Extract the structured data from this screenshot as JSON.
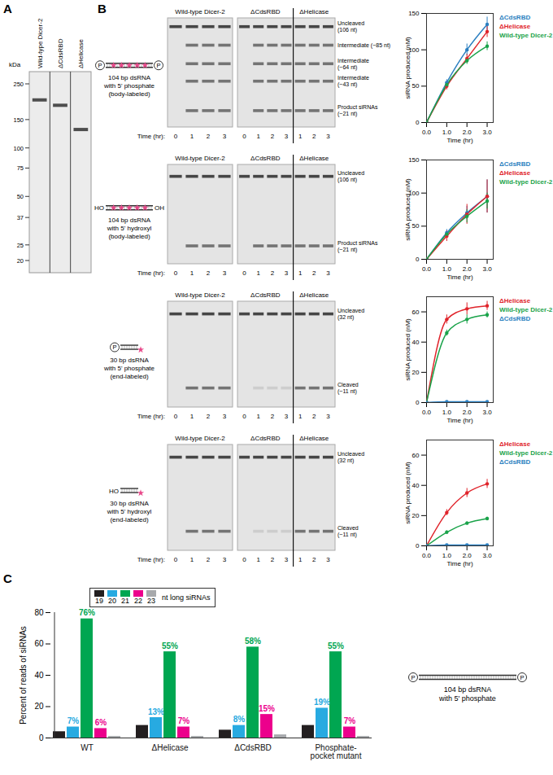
{
  "chart_data": [
    {
      "type": "line",
      "x": [
        0,
        1,
        2,
        3
      ],
      "xlim": [
        0,
        3.3
      ],
      "xticks": [
        0,
        1,
        2,
        3
      ],
      "ylim": [
        0,
        150
      ],
      "yticks": [
        0,
        50,
        100,
        150
      ],
      "x_label": "Time (hr)",
      "y_label": "siRNA produced (nM)",
      "legend": "right",
      "marker": "circle",
      "series": [
        {
          "name": "ΔCdsRBD",
          "color": "#2b7fc0",
          "values": [
            0,
            55,
            100,
            135
          ],
          "errors": [
            0,
            4,
            8,
            10
          ]
        },
        {
          "name": "ΔHelicase",
          "color": "#e0242b",
          "values": [
            0,
            50,
            88,
            125
          ],
          "errors": [
            0,
            5,
            6,
            8
          ]
        },
        {
          "name": "Wild-type Dicer-2",
          "color": "#1aa34a",
          "values": [
            0,
            52,
            85,
            105
          ],
          "errors": [
            0,
            3,
            5,
            6
          ]
        }
      ]
    },
    {
      "type": "line",
      "x": [
        0,
        1,
        2,
        3
      ],
      "xlim": [
        0,
        3.3
      ],
      "xticks": [
        0,
        1,
        2,
        3
      ],
      "ylim": [
        0,
        150
      ],
      "yticks": [
        0,
        50,
        100,
        150
      ],
      "x_label": "Time (hr)",
      "y_label": "siRNA produced (nM)",
      "legend": "right",
      "marker": "circle",
      "series": [
        {
          "name": "ΔCdsRBD",
          "color": "#2b7fc0",
          "values": [
            0,
            40,
            70,
            95
          ],
          "errors": [
            0,
            5,
            10,
            25
          ]
        },
        {
          "name": "ΔHelicase",
          "color": "#e0242b",
          "values": [
            0,
            35,
            68,
            95
          ],
          "errors": [
            0,
            8,
            15,
            25
          ]
        },
        {
          "name": "Wild-type Dicer-2",
          "color": "#1aa34a",
          "values": [
            0,
            38,
            65,
            88
          ],
          "errors": [
            0,
            4,
            10,
            12
          ]
        }
      ]
    },
    {
      "type": "line",
      "x": [
        0,
        1,
        2,
        3
      ],
      "xlim": [
        0,
        3.3
      ],
      "xticks": [
        0,
        1,
        2,
        3
      ],
      "ylim": [
        0,
        70
      ],
      "yticks": [
        0,
        20,
        40,
        60
      ],
      "x_label": "Time (hr)",
      "y_label": "siRNA produced (nM)",
      "legend": "right",
      "marker": "circle",
      "series": [
        {
          "name": "ΔHelicase",
          "color": "#e0242b",
          "values": [
            0,
            55,
            62,
            64
          ],
          "errors": [
            0,
            3,
            4,
            3
          ]
        },
        {
          "name": "Wild-type Dicer-2",
          "color": "#1aa34a",
          "values": [
            0,
            46,
            55,
            58
          ],
          "errors": [
            0,
            2,
            3,
            2
          ]
        },
        {
          "name": "ΔCdsRBD",
          "color": "#2b7fc0",
          "values": [
            0,
            0.5,
            0.5,
            0.5
          ],
          "errors": [
            0,
            0.3,
            0.3,
            0.3
          ]
        }
      ]
    },
    {
      "type": "line",
      "x": [
        0,
        1,
        2,
        3
      ],
      "xlim": [
        0,
        3.3
      ],
      "xticks": [
        0,
        1,
        2,
        3
      ],
      "ylim": [
        0,
        70
      ],
      "yticks": [
        0,
        20,
        40,
        60
      ],
      "x_label": "Time (hr)",
      "y_label": "siRNA produced (nM)",
      "legend": "right",
      "marker": "circle",
      "series": [
        {
          "name": "ΔHelicase",
          "color": "#e0242b",
          "values": [
            0,
            22,
            35,
            41
          ],
          "errors": [
            0,
            2,
            3,
            3
          ]
        },
        {
          "name": "Wild-type Dicer-2",
          "color": "#1aa34a",
          "values": [
            0,
            9,
            15,
            18
          ],
          "errors": [
            0,
            1,
            1,
            1
          ]
        },
        {
          "name": "ΔCdsRBD",
          "color": "#2b7fc0",
          "values": [
            0,
            0.5,
            0.5,
            0.5
          ],
          "errors": [
            0,
            0.2,
            0.2,
            0.2
          ]
        }
      ]
    },
    {
      "type": "bar",
      "categories": [
        "WT",
        "ΔHelicase",
        "ΔCdsRBD",
        "Phosphate-pocket mutant"
      ],
      "y_label": "Percent of reads of siRNAs",
      "ylim": [
        0,
        80
      ],
      "yticks": [
        0,
        20,
        40,
        60,
        80
      ],
      "legend": "top",
      "legend_title": "nt long siRNAs",
      "data_labels": true,
      "series": [
        {
          "name": "19",
          "color": "#231f20",
          "values": [
            4,
            8,
            5,
            8
          ],
          "value_labels": [
            null,
            null,
            null,
            null
          ]
        },
        {
          "name": "20",
          "color": "#27aae1",
          "values": [
            7,
            13,
            8,
            19
          ],
          "value_labels": [
            "7%",
            "13%",
            "8%",
            "19%"
          ]
        },
        {
          "name": "21",
          "color": "#00a651",
          "values": [
            76,
            55,
            58,
            55
          ],
          "value_labels": [
            "76%",
            "55%",
            "58%",
            "55%"
          ]
        },
        {
          "name": "22",
          "color": "#ec008c",
          "values": [
            6,
            7,
            15,
            7
          ],
          "value_labels": [
            "6%",
            "7%",
            "15%",
            "7%"
          ]
        },
        {
          "name": "23",
          "color": "#a7a9ac",
          "values": [
            1,
            1,
            2,
            1
          ],
          "value_labels": [
            null,
            null,
            null,
            null
          ]
        }
      ]
    }
  ],
  "figure": {
    "panel_labels": [
      "A",
      "B",
      "C"
    ],
    "gel_a": {
      "unit": "kDa",
      "lanes": [
        "Wild-type Dicer-2",
        "ΔCdsRBD",
        "ΔHelicase"
      ],
      "markers": [
        250,
        150,
        100,
        75,
        50,
        37,
        25,
        20
      ]
    },
    "gel_b": {
      "time_label": "Time (hr):",
      "blocks": [
        {
          "label": "Wild-type Dicer-2",
          "times": [
            0,
            1,
            2,
            3
          ]
        },
        {
          "label": "ΔCdsRBD",
          "times": [
            0,
            1,
            2,
            3
          ]
        },
        {
          "label": "ΔHelicase",
          "times": [
            1,
            2,
            3
          ]
        }
      ],
      "rows": [
        {
          "substrate": [
            "104 bp dsRNA",
            "with 5' phosphate",
            "(body-labeled)"
          ],
          "left_end": "P",
          "right_end": "P",
          "bands": [
            [
              "Uncleaved",
              "(106 nt)"
            ],
            [
              "Intermediate (~85 nt)"
            ],
            [
              "Intermediate",
              "(~64 nt)"
            ],
            [
              "Intermediate",
              "(~43 nt)"
            ],
            [
              "Product siRNAs",
              "(~21 nt)"
            ]
          ]
        },
        {
          "substrate": [
            "104 bp dsRNA",
            "with 5' hydroxyl",
            "(body-labeled)"
          ],
          "left_end": "HO",
          "right_end": "OH",
          "bands": [
            [
              "Uncleaved",
              "(106 nt)"
            ],
            [
              "Product siRNAs",
              "(~21 nt)"
            ]
          ]
        },
        {
          "substrate": [
            "30 bp dsRNA",
            "with 5' phosphate",
            "(end-labeled)"
          ],
          "left_end": "P",
          "right_end": null,
          "bands": [
            [
              "Uncleaved",
              "(32 nt)"
            ],
            [
              "Cleaved",
              "(~11 nt)"
            ]
          ]
        },
        {
          "substrate": [
            "30 bp dsRNA",
            "with 5' hydroxyl",
            "(end-labeled)"
          ],
          "left_end": "HO",
          "right_end": null,
          "bands": [
            [
              "Uncleaved",
              "(32 nt)"
            ],
            [
              "Cleaved",
              "(~11 nt)"
            ]
          ]
        }
      ]
    },
    "schematic_c": {
      "substrate": [
        "104 bp dsRNA",
        "with 5' phosphate"
      ],
      "left_end": "P",
      "right_end": "P"
    }
  }
}
